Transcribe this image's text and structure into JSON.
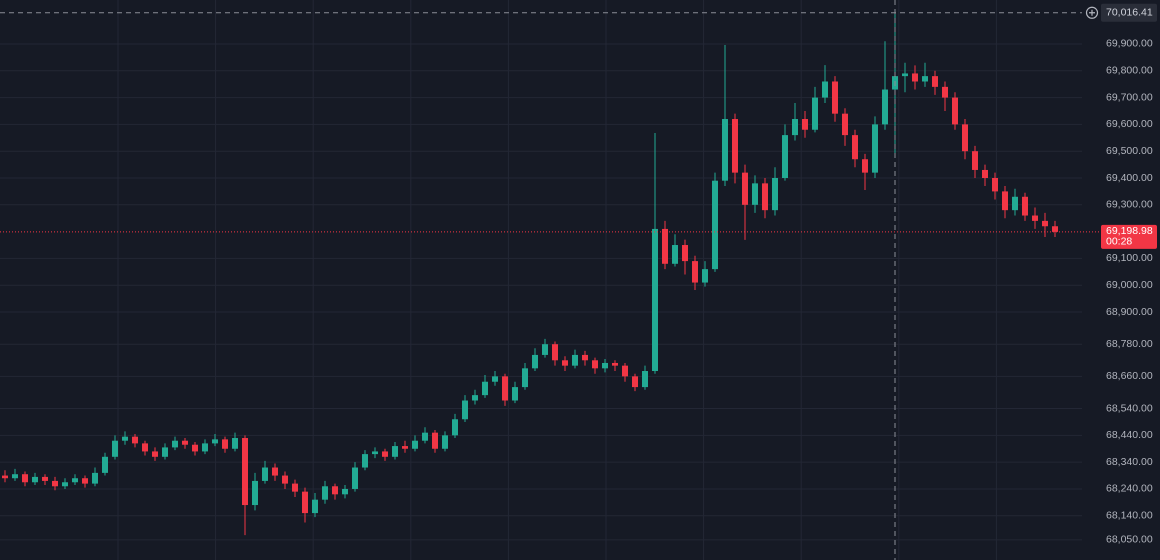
{
  "chart_data": {
    "type": "candlestick",
    "up_color": "#22ab94",
    "down_color": "#f23645",
    "grid": true,
    "ylim": [
      67975,
      70064
    ],
    "yticks": [
      {
        "value": 68050,
        "label": "68,050.00"
      },
      {
        "value": 68140,
        "label": "68,140.00"
      },
      {
        "value": 68240,
        "label": "68,240.00"
      },
      {
        "value": 68340,
        "label": "68,340.00"
      },
      {
        "value": 68440,
        "label": "68,440.00"
      },
      {
        "value": 68540,
        "label": "68,540.00"
      },
      {
        "value": 68660,
        "label": "68,660.00"
      },
      {
        "value": 68780,
        "label": "68,780.00"
      },
      {
        "value": 68900,
        "label": "68,900.00"
      },
      {
        "value": 69000,
        "label": "69,000.00"
      },
      {
        "value": 69100,
        "label": "69,100.00"
      },
      {
        "value": 69300,
        "label": "69,300.00"
      },
      {
        "value": 69400,
        "label": "69,400.00"
      },
      {
        "value": 69500,
        "label": "69,500.00"
      },
      {
        "value": 69600,
        "label": "69,600.00"
      },
      {
        "value": 69700,
        "label": "69,700.00"
      },
      {
        "value": 69800,
        "label": "69,800.00"
      },
      {
        "value": 69900,
        "label": "69,900.00"
      }
    ],
    "last_price": {
      "value": 69198.98,
      "label": "69,198.98"
    },
    "countdown": "00:28",
    "crosshair": {
      "value": 70016.41,
      "label": "70,016.41"
    },
    "candles": [
      [
        68290,
        68310,
        68265,
        68280
      ],
      [
        68280,
        68315,
        68270,
        68295
      ],
      [
        68295,
        68305,
        68250,
        68265
      ],
      [
        68265,
        68300,
        68255,
        68285
      ],
      [
        68285,
        68295,
        68255,
        68270
      ],
      [
        68270,
        68285,
        68235,
        68250
      ],
      [
        68250,
        68280,
        68240,
        68265
      ],
      [
        68265,
        68295,
        68255,
        68280
      ],
      [
        68280,
        68290,
        68245,
        68260
      ],
      [
        68260,
        68320,
        68250,
        68300
      ],
      [
        68300,
        68375,
        68290,
        68360
      ],
      [
        68360,
        68440,
        68350,
        68420
      ],
      [
        68420,
        68455,
        68405,
        68435
      ],
      [
        68435,
        68445,
        68395,
        68410
      ],
      [
        68410,
        68420,
        68365,
        68380
      ],
      [
        68380,
        68395,
        68345,
        68360
      ],
      [
        68360,
        68410,
        68350,
        68395
      ],
      [
        68395,
        68435,
        68385,
        68420
      ],
      [
        68420,
        68430,
        68390,
        68405
      ],
      [
        68405,
        68415,
        68365,
        68380
      ],
      [
        68380,
        68425,
        68370,
        68410
      ],
      [
        68410,
        68445,
        68400,
        68425
      ],
      [
        68425,
        68435,
        68375,
        68390
      ],
      [
        68390,
        68450,
        68380,
        68430
      ],
      [
        68430,
        68440,
        68068,
        68180
      ],
      [
        68180,
        68300,
        68160,
        68270
      ],
      [
        68270,
        68345,
        68260,
        68320
      ],
      [
        68320,
        68335,
        68270,
        68290
      ],
      [
        68290,
        68305,
        68240,
        68260
      ],
      [
        68260,
        68275,
        68210,
        68230
      ],
      [
        68230,
        68245,
        68115,
        68150
      ],
      [
        68150,
        68225,
        68135,
        68200
      ],
      [
        68200,
        68270,
        68185,
        68250
      ],
      [
        68250,
        68260,
        68200,
        68220
      ],
      [
        68220,
        68255,
        68205,
        68240
      ],
      [
        68240,
        68340,
        68230,
        68320
      ],
      [
        68320,
        68385,
        68310,
        68370
      ],
      [
        68370,
        68395,
        68355,
        68380
      ],
      [
        68380,
        68390,
        68345,
        68360
      ],
      [
        68360,
        68415,
        68350,
        68400
      ],
      [
        68400,
        68420,
        68375,
        68390
      ],
      [
        68390,
        68440,
        68380,
        68420
      ],
      [
        68420,
        68470,
        68410,
        68450
      ],
      [
        68450,
        68460,
        68375,
        68390
      ],
      [
        68390,
        68455,
        68380,
        68440
      ],
      [
        68440,
        68520,
        68430,
        68500
      ],
      [
        68500,
        68590,
        68490,
        68570
      ],
      [
        68570,
        68610,
        68555,
        68590
      ],
      [
        68590,
        68665,
        68580,
        68640
      ],
      [
        68640,
        68680,
        68625,
        68660
      ],
      [
        68660,
        68670,
        68550,
        68570
      ],
      [
        68570,
        68640,
        68560,
        68620
      ],
      [
        68620,
        68710,
        68610,
        68690
      ],
      [
        68690,
        68765,
        68680,
        68740
      ],
      [
        68740,
        68800,
        68730,
        68780
      ],
      [
        68780,
        68790,
        68700,
        68720
      ],
      [
        68720,
        68735,
        68680,
        68700
      ],
      [
        68700,
        68760,
        68690,
        68740
      ],
      [
        68740,
        68755,
        68700,
        68720
      ],
      [
        68720,
        68730,
        68670,
        68690
      ],
      [
        68690,
        68725,
        68675,
        68710
      ],
      [
        68710,
        68720,
        68680,
        68700
      ],
      [
        68700,
        68710,
        68640,
        68660
      ],
      [
        68660,
        68670,
        68605,
        68620
      ],
      [
        68620,
        68700,
        68610,
        68680
      ],
      [
        68680,
        69568,
        68670,
        69210
      ],
      [
        69210,
        69240,
        69060,
        69080
      ],
      [
        69080,
        69190,
        69070,
        69150
      ],
      [
        69150,
        69170,
        69040,
        69090
      ],
      [
        69090,
        69110,
        68982,
        69010
      ],
      [
        69010,
        69090,
        68995,
        69060
      ],
      [
        69060,
        69420,
        69050,
        69390
      ],
      [
        69390,
        69896,
        69370,
        69620
      ],
      [
        69620,
        69640,
        69380,
        69420
      ],
      [
        69420,
        69450,
        69169,
        69300
      ],
      [
        69300,
        69410,
        69270,
        69380
      ],
      [
        69380,
        69400,
        69250,
        69280
      ],
      [
        69280,
        69440,
        69260,
        69400
      ],
      [
        69400,
        69600,
        69390,
        69560
      ],
      [
        69560,
        69680,
        69540,
        69620
      ],
      [
        69620,
        69650,
        69550,
        69580
      ],
      [
        69580,
        69740,
        69570,
        69700
      ],
      [
        69700,
        69821,
        69680,
        69760
      ],
      [
        69760,
        69780,
        69610,
        69640
      ],
      [
        69640,
        69660,
        69520,
        69560
      ],
      [
        69560,
        69580,
        69440,
        69470
      ],
      [
        69470,
        69490,
        69355,
        69420
      ],
      [
        69420,
        69630,
        69400,
        69600
      ],
      [
        69600,
        69910,
        69580,
        69730
      ],
      [
        69730,
        70016,
        69480,
        69780
      ],
      [
        69780,
        69830,
        69720,
        69790
      ],
      [
        69790,
        69820,
        69730,
        69760
      ],
      [
        69760,
        69830,
        69740,
        69780
      ],
      [
        69780,
        69800,
        69710,
        69740
      ],
      [
        69740,
        69760,
        69650,
        69700
      ],
      [
        69700,
        69720,
        69580,
        69600
      ],
      [
        69600,
        69620,
        69470,
        69500
      ],
      [
        69500,
        69520,
        69400,
        69430
      ],
      [
        69430,
        69450,
        69370,
        69400
      ],
      [
        69400,
        69420,
        69320,
        69350
      ],
      [
        69350,
        69370,
        69250,
        69280
      ],
      [
        69280,
        69360,
        69260,
        69330
      ],
      [
        69330,
        69345,
        69240,
        69260
      ],
      [
        69260,
        69290,
        69210,
        69240
      ],
      [
        69240,
        69270,
        69180,
        69220
      ],
      [
        69220,
        69240,
        69180,
        69198.98
      ]
    ]
  }
}
